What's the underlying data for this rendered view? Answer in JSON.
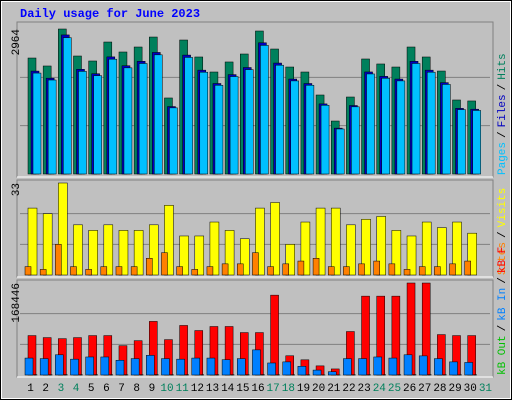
{
  "chart_data": [
    {
      "type": "bar",
      "title": "Daily usage for June 2023",
      "legend_separator": "/",
      "ylim": [
        0,
        2964
      ],
      "series": [
        {
          "name": "Hits",
          "color": "#00805c",
          "values": [
            2371,
            2208,
            2964,
            2412,
            2310,
            2698,
            2494,
            2596,
            2800,
            1554,
            2739,
            2392,
            2085,
            2290,
            2453,
            2923,
            2555,
            2187,
            2085,
            1615,
            1083,
            1574,
            2351,
            2249,
            2187,
            2596,
            2392,
            2105,
            1513,
            1493,
            null
          ]
        },
        {
          "name": "Files",
          "color": "#0000c0",
          "values": [
            2104,
            1959,
            2843,
            2140,
            2050,
            2394,
            2213,
            2304,
            2485,
            1379,
            2431,
            2123,
            1850,
            2032,
            2177,
            2682,
            2268,
            1941,
            1850,
            1433,
            938,
            1400,
            2086,
            1996,
            1941,
            2304,
            2123,
            1868,
            1342,
            1325,
            null
          ]
        },
        {
          "name": "Pages",
          "color": "#00c0ff",
          "values": [
            2063,
            1921,
            2787,
            2098,
            2010,
            2347,
            2170,
            2259,
            2436,
            1352,
            2383,
            2081,
            1814,
            1992,
            2134,
            2629,
            2224,
            1903,
            1814,
            1405,
            920,
            1373,
            2045,
            1957,
            1903,
            2259,
            2081,
            1831,
            1316,
            1299,
            null
          ]
        }
      ]
    },
    {
      "type": "bar",
      "legend_separator": "/",
      "ylim": [
        0,
        33
      ],
      "series": [
        {
          "name": "Visits",
          "color": "#ffff00",
          "values": [
            24,
            22,
            33,
            18,
            16,
            18,
            16,
            16,
            18,
            25,
            14,
            14,
            19,
            16,
            13,
            24,
            26,
            11,
            19,
            24,
            24,
            18,
            20,
            21,
            16,
            14,
            19,
            17,
            19,
            15,
            null
          ]
        },
        {
          "name": "Sites",
          "color": "#ff8000",
          "values": [
            3,
            2,
            11,
            3,
            2,
            3,
            3,
            3,
            6,
            8,
            3,
            2,
            3,
            4,
            4,
            8,
            3,
            4,
            5,
            6,
            3,
            3,
            4,
            5,
            4,
            2,
            3,
            3,
            4,
            5,
            null
          ]
        }
      ]
    },
    {
      "type": "bar",
      "legend_separator": "/",
      "ylim": [
        0,
        168446
      ],
      "categories": [
        "1",
        "2",
        "3",
        "4",
        "5",
        "6",
        "7",
        "8",
        "9",
        "10",
        "11",
        "12",
        "13",
        "14",
        "15",
        "16",
        "17",
        "18",
        "19",
        "20",
        "21",
        "22",
        "23",
        "24",
        "25",
        "26",
        "27",
        "28",
        "29",
        "30",
        "31"
      ],
      "category_colors": [
        "#000000",
        "#000000",
        "#00805c",
        "#00805c",
        "#000000",
        "#000000",
        "#000000",
        "#000000",
        "#000000",
        "#00805c",
        "#00805c",
        "#000000",
        "#000000",
        "#000000",
        "#000000",
        "#000000",
        "#00805c",
        "#00805c",
        "#000000",
        "#000000",
        "#000000",
        "#000000",
        "#000000",
        "#00805c",
        "#00805c",
        "#000000",
        "#000000",
        "#000000",
        "#000000",
        "#000000",
        "#00805c"
      ],
      "series": [
        {
          "name": "kB F",
          "color": "#ff0000",
          "values": [
            72200,
            68500,
            66600,
            68500,
            72200,
            72200,
            53700,
            62900,
            98100,
            64800,
            90700,
            81400,
            88800,
            88800,
            77700,
            77700,
            146200,
            35200,
            27800,
            16700,
            11100,
            79600,
            144400,
            144400,
            144400,
            168446,
            168400,
            74000,
            72200,
            72200,
            null
          ]
        },
        {
          "name": "kB In",
          "color": "#0080ff",
          "values": [
            31000,
            30000,
            37000,
            29000,
            33000,
            33000,
            27000,
            30000,
            36000,
            30000,
            29000,
            31000,
            31000,
            28000,
            30000,
            46000,
            22000,
            24000,
            16000,
            9000,
            6000,
            30000,
            30000,
            33000,
            31000,
            37000,
            35000,
            30000,
            24000,
            23000,
            null
          ]
        },
        {
          "name": "kB Out",
          "color": "#00c000",
          "values": [
            500,
            500,
            600,
            500,
            500,
            500,
            400,
            500,
            600,
            500,
            500,
            500,
            500,
            500,
            500,
            700,
            400,
            400,
            300,
            200,
            100,
            500,
            500,
            500,
            500,
            600,
            600,
            500,
            400,
            400,
            null
          ]
        }
      ]
    }
  ]
}
